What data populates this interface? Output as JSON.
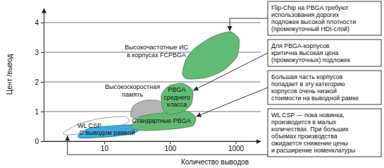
{
  "chart_data": {
    "type": "region",
    "x_label": "Количество выводов",
    "y_label": "Цент /вывод",
    "log": "x",
    "grid": true,
    "xlim": [
      1.2,
      2400
    ],
    "xticks": [
      10,
      100,
      1000
    ],
    "ylim": [
      0,
      4.5
    ],
    "yticks": [
      0,
      1,
      2,
      3,
      4
    ],
    "series": [
      {
        "name": "Высокоскоростная\nпамять",
        "color": "#b4b4b4",
        "x": [
          25.6,
          27.6,
          42,
          69,
          82,
          74,
          42
        ],
        "values": [
          0.83,
          1.19,
          1.38,
          1.36,
          1.14,
          0.83,
          0.71
        ]
      },
      {
        "name": "WL CSP",
        "color": "#ffffff",
        "x": [
          2.44,
          4.0,
          8.4,
          20,
          23.8,
          15.6,
          6.6,
          2.76
        ],
        "values": [
          0.29,
          0.57,
          0.76,
          0.83,
          0.67,
          0.48,
          0.31,
          0.21
        ]
      },
      {
        "name": "С выводом рамкой",
        "color": "#3ea9df",
        "x": [
          4.0,
          5.8,
          13.8,
          30.5,
          35,
          25.6,
          10.8,
          4.5
        ],
        "values": [
          0.19,
          0.43,
          0.52,
          0.55,
          0.4,
          0.24,
          0.14,
          0.1
        ]
      },
      {
        "name": "Стандартные PBGA",
        "color": "#62bb74",
        "x": [
          25.6,
          35,
          78,
          173,
          244,
          221,
          100,
          37
        ],
        "values": [
          0.48,
          0.83,
          0.95,
          1.02,
          0.83,
          0.52,
          0.4,
          0.36
        ]
      },
      {
        "name": "PBGA\nсреднего\nкласса",
        "color": "#62bb74",
        "x": [
          78,
          74,
          95,
          156,
          221,
          210,
          156,
          100
        ],
        "values": [
          1.07,
          1.55,
          1.86,
          1.95,
          1.71,
          1.24,
          1.0,
          0.9
        ]
      },
      {
        "name": "Высокочастотные ИС\nв корпусах FCPBGA",
        "color": "#62bb74",
        "x": [
          155,
          174,
          240,
          441,
          813,
          1120,
          1050,
          646,
          347,
          186
        ],
        "values": [
          2.26,
          2.74,
          3.14,
          3.52,
          3.69,
          3.45,
          2.86,
          2.38,
          2.14,
          2.1
        ]
      }
    ],
    "annotations": [
      "Flip-Chip на PBGA требуют\nиспользования дорогих\nподложек высокой плотности\n(промежуточный HDI-слой)",
      "Для PBGA-корпусов\nкритична высокая цена\n(промежуточных) подложек",
      "Большая часть корпусов\nпопадает в эту категорию\nкорпусов очень низкой\nстоимости на выводной рамке",
      "WL CSP — пока новинка,\nпроизводится в малых\nколичествах. При больших\nобъемах производства\nожидается снижение цены\nи расширение номенклатуры"
    ]
  }
}
